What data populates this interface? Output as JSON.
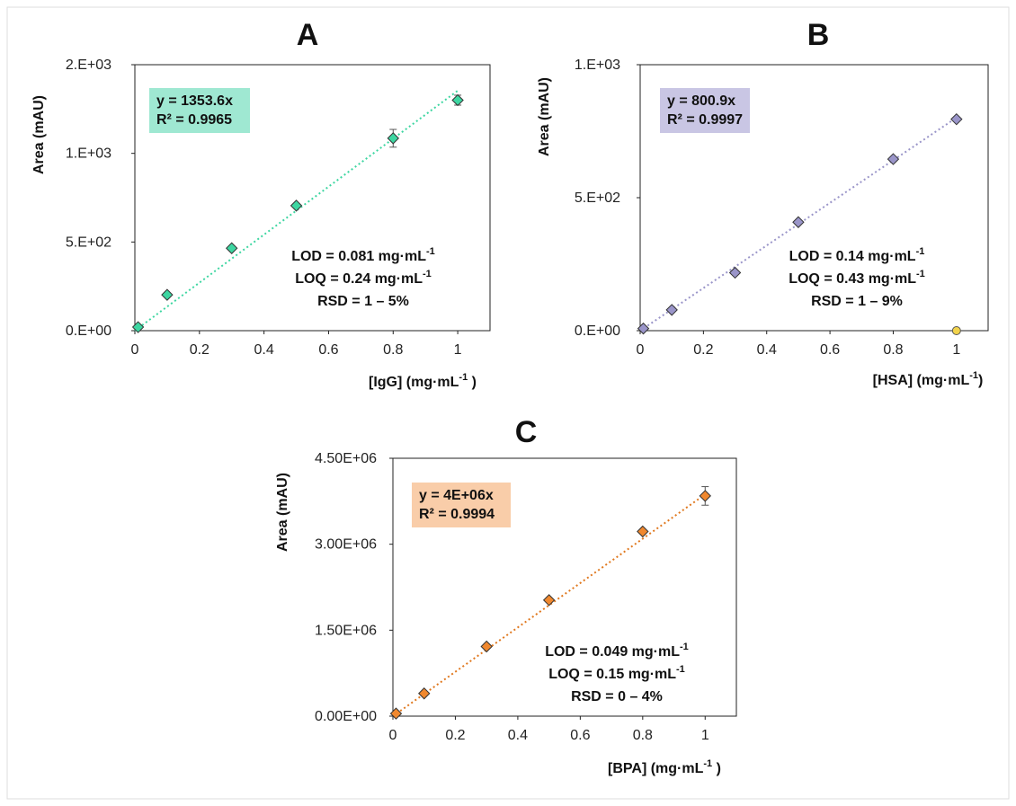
{
  "chart_data": [
    {
      "type": "scatter",
      "panel": "A",
      "ylabel": "Area (mAU)",
      "xlabel_main": "[IgG] (mg·mL",
      "xlabel_sup": "-1",
      "xlabel_tail": " )",
      "x_ticks": [
        "0",
        "0.2",
        "0.4",
        "0.6",
        "0.8",
        "1"
      ],
      "y_ticks": [
        "0.E+00",
        "5.E+02",
        "1.E+03",
        "2.E+03"
      ],
      "xlim": [
        0,
        1.1
      ],
      "ylim": [
        0,
        1500
      ],
      "x": [
        0.01,
        0.1,
        0.3,
        0.5,
        0.8,
        1.0
      ],
      "y": [
        20,
        202,
        465,
        705,
        1085,
        1300
      ],
      "errors": [
        0,
        0,
        0,
        0,
        50,
        28
      ],
      "trendline_slope": 1353.6,
      "marker_color": "#3dd6a1",
      "trend_color": "#3dd6a1",
      "equation_lines": [
        "y = 1353.6x",
        "R² = 0.9965"
      ],
      "equation_bg": "#9fe8d2",
      "annotations": [
        {
          "main": "LOD = 0.081 mg·mL",
          "sup": "-1"
        },
        {
          "main": "LOQ =  0.24  mg·mL",
          "sup": "-1"
        },
        {
          "main": "RSD = 1 – 5%",
          "sup": ""
        }
      ]
    },
    {
      "type": "scatter",
      "panel": "B",
      "ylabel": "Area (mAU)",
      "xlabel_main": "[HSA] (mg·mL",
      "xlabel_sup": "-1",
      "xlabel_tail": ")",
      "x_ticks": [
        "0",
        "0.2",
        "0.4",
        "0.6",
        "0.8",
        "1"
      ],
      "y_ticks": [
        "0.E+00",
        "5.E+02",
        "1.E+03"
      ],
      "xlim": [
        0,
        1.1
      ],
      "ylim": [
        0,
        1000
      ],
      "x": [
        0.01,
        0.1,
        0.3,
        0.5,
        0.8,
        1.0
      ],
      "y": [
        8,
        78,
        218,
        408,
        645,
        795
      ],
      "errors": [
        0,
        0,
        0,
        0,
        0,
        0
      ],
      "trendline_slope": 800.9,
      "marker_color": "#9a95c9",
      "trend_color": "#9a95c9",
      "extra_point": {
        "x": 1.0,
        "y": 0,
        "color": "#f2d34b"
      },
      "equation_lines": [
        "y = 800.9x",
        "R² = 0.9997"
      ],
      "equation_bg": "#c9c6e4",
      "annotations": [
        {
          "main": "LOD = 0.14 mg·mL",
          "sup": "-1"
        },
        {
          "main": "LOQ =  0.43  mg·mL",
          "sup": "-1"
        },
        {
          "main": "RSD = 1 – 9%",
          "sup": ""
        }
      ]
    },
    {
      "type": "scatter",
      "panel": "C",
      "ylabel": "Area (mAU)",
      "xlabel_main": "[BPA] (mg·mL",
      "xlabel_sup": "-1",
      "xlabel_tail": " )",
      "x_ticks": [
        "0",
        "0.2",
        "0.4",
        "0.6",
        "0.8",
        "1"
      ],
      "y_ticks": [
        "0.00E+00",
        "1.50E+06",
        "3.00E+06",
        "4.50E+06"
      ],
      "xlim": [
        0,
        1.1
      ],
      "ylim": [
        0,
        5000000
      ],
      "x": [
        0.01,
        0.1,
        0.3,
        0.5,
        0.8,
        1.0
      ],
      "y": [
        50000,
        440000,
        1350000,
        2250000,
        3580000,
        4270000
      ],
      "errors": [
        0,
        0,
        0,
        0,
        0,
        180000
      ],
      "trendline_slope": 4300000,
      "marker_color": "#f0882e",
      "trend_color": "#e0781e",
      "equation_lines": [
        "y = 4E+06x",
        "R² = 0.9994"
      ],
      "equation_bg": "#f9cda9",
      "annotations": [
        {
          "main": "LOD = 0.049 mg·mL",
          "sup": "-1"
        },
        {
          "main": "LOQ = 0.15 mg·mL",
          "sup": "-1"
        },
        {
          "main": "RSD = 0 – 4%",
          "sup": ""
        }
      ]
    }
  ]
}
